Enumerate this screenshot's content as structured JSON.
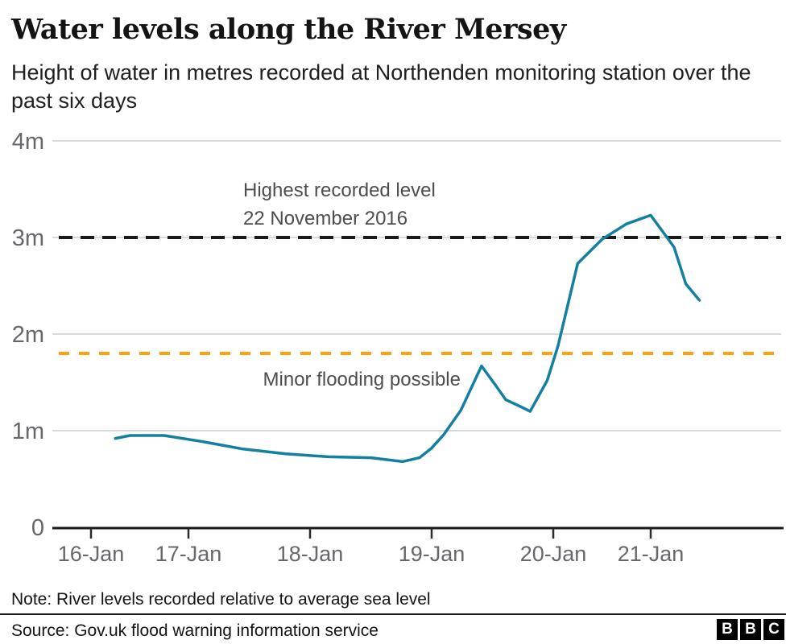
{
  "header": {
    "title": "Water levels along the River Mersey",
    "subtitle": "Height of water in metres recorded at Northenden monitoring station over the past six days"
  },
  "colors": {
    "line": "#1380A1",
    "record_line": "#1a1a1a",
    "flood_line": "#FFA10A",
    "grid": "#d9d9d9",
    "axis": "#1a1a1a",
    "tick": "#2b2b2b",
    "tick_label": "#66676c",
    "annotation": "#4d4d4d"
  },
  "chart_data": {
    "type": "line",
    "title": "Water levels along the River Mersey",
    "ylabel": "Height of water (metres)",
    "ylim": [
      0,
      4
    ],
    "grid": true,
    "legend": false,
    "yticks": [
      {
        "label": "4m",
        "value": 4
      },
      {
        "label": "3m",
        "value": 3
      },
      {
        "label": "2m",
        "value": 2
      },
      {
        "label": "1m",
        "value": 1
      },
      {
        "label": "0",
        "value": 0
      }
    ],
    "xtick_labels": [
      "16-Jan",
      "17-Jan",
      "18-Jan",
      "19-Jan",
      "20-Jan",
      "21-Jan"
    ],
    "series": [
      {
        "name": "water_level_m",
        "x_days_from_16_jan": [
          0.25,
          0.4,
          0.75,
          1.1,
          1.45,
          1.8,
          2.15,
          2.5,
          2.76,
          2.9,
          3.0,
          3.1,
          3.24,
          3.41,
          3.52,
          3.61,
          3.73,
          3.81,
          3.95,
          4.05,
          4.25,
          4.5,
          4.75,
          5.0,
          5.24,
          5.36,
          5.5
        ],
        "values": [
          0.92,
          0.95,
          0.95,
          0.89,
          0.81,
          0.76,
          0.73,
          0.72,
          0.68,
          0.72,
          0.82,
          0.96,
          1.21,
          1.67,
          1.48,
          1.32,
          1.25,
          1.2,
          1.52,
          1.88,
          2.73,
          2.98,
          3.14,
          3.23,
          2.9,
          2.52,
          2.35
        ]
      }
    ],
    "reference_lines": [
      {
        "id": "record",
        "label": "Highest recorded level",
        "sublabel": "22 November 2016",
        "value": 3.0,
        "style": "dashed"
      },
      {
        "id": "flood",
        "label": "Minor flooding possible",
        "value": 1.8,
        "style": "dashed"
      }
    ]
  },
  "footer": {
    "note": "Note: River levels recorded relative to average sea level",
    "source": "Source: Gov.uk flood warning information service",
    "logo_blocks": [
      "B",
      "B",
      "C"
    ]
  }
}
